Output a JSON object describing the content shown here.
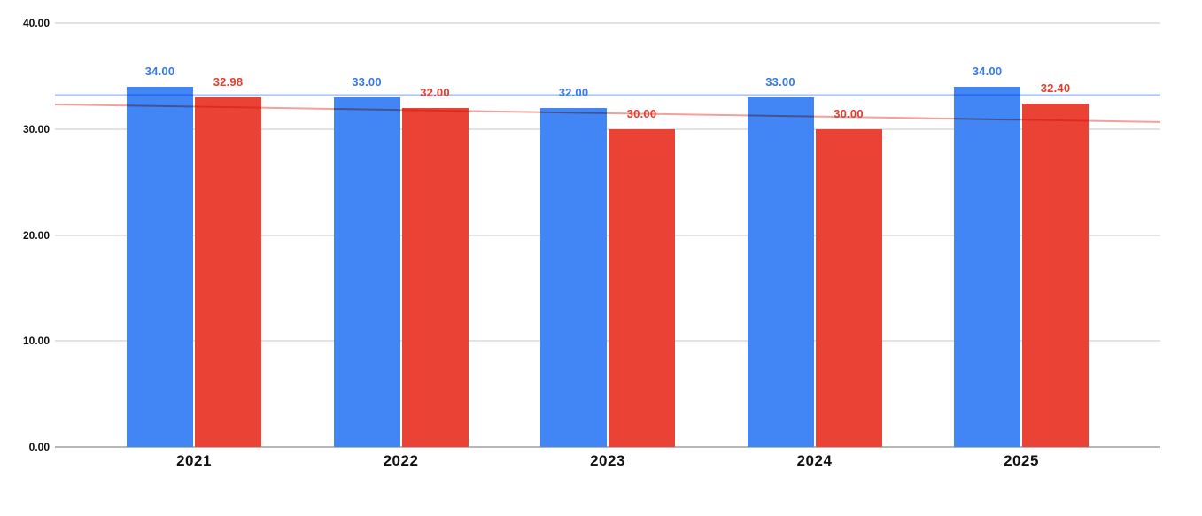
{
  "chart_data": {
    "type": "bar",
    "title": "",
    "categories": [
      "2021",
      "2022",
      "2023",
      "2024",
      "2025"
    ],
    "series": [
      {
        "name": "blue-series",
        "color": "#4285F4",
        "label_color": "#3579F0",
        "values": [
          34.0,
          33.0,
          32.0,
          33.0,
          34.0
        ],
        "data_labels": [
          "34.00",
          "33.00",
          "32.00",
          "33.00",
          "34.00"
        ]
      },
      {
        "name": "red-series",
        "color": "#EA4335",
        "label_color": "#E73B2E",
        "values": [
          32.98,
          32.0,
          30.0,
          30.0,
          32.4
        ],
        "data_labels": [
          "32.98",
          "32.00",
          "30.00",
          "30.00",
          "32.40"
        ]
      }
    ],
    "trendlines": [
      {
        "series": "blue-series",
        "color": "#A9C6F8",
        "value_at_left_edge": 33.2,
        "value_at_right_edge": 33.2
      },
      {
        "series": "red-series",
        "color": "#F2A19A",
        "value_at_left_edge": 32.32,
        "value_at_right_edge": 30.66
      }
    ],
    "y_axis": {
      "min": 0,
      "max": 40,
      "tick_values": [
        0,
        10,
        20,
        30,
        40
      ],
      "tick_labels": [
        "0.00",
        "10.00",
        "20.00",
        "30.00",
        "40.00"
      ]
    },
    "x_axis": {
      "tick_labels": [
        "2021",
        "2022",
        "2023",
        "2024",
        "2025"
      ]
    },
    "legend_position": "none",
    "grid": true,
    "colors": {
      "background": "#FFFFFF",
      "gridline": "#E3E3E3",
      "baseline": "#B7B7B7",
      "axis_text": "#111111"
    }
  }
}
